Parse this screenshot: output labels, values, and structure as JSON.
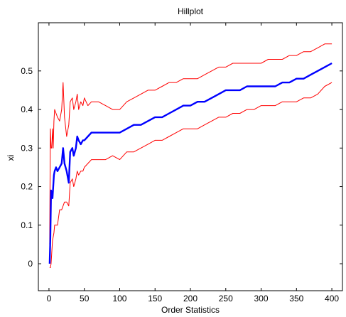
{
  "chart_data": {
    "type": "line",
    "title": "Hillplot",
    "xlabel": "Order Statistics",
    "ylabel": "xi",
    "xlim": [
      -15,
      415
    ],
    "ylim": [
      -0.07,
      0.625
    ],
    "xticks": [
      0,
      50,
      100,
      150,
      200,
      250,
      300,
      350,
      400
    ],
    "yticks": [
      0,
      0.1,
      0.2,
      0.3,
      0.4,
      0.5
    ],
    "ytick_labels": [
      "0",
      "0.1",
      "0.2",
      "0.3",
      "0.4",
      "0.5"
    ],
    "grid": false,
    "series": [
      {
        "color": "#ff0000",
        "x": [
          1,
          2,
          3,
          4,
          5,
          6,
          7,
          8,
          10,
          12,
          15,
          18,
          20,
          22,
          25,
          28,
          30,
          33,
          35,
          38,
          40,
          42,
          45,
          48,
          50,
          55,
          60,
          70,
          80,
          90,
          100,
          110,
          120,
          130,
          140,
          150,
          160,
          170,
          180,
          190,
          200,
          210,
          220,
          230,
          240,
          250,
          260,
          270,
          280,
          290,
          300,
          310,
          320,
          330,
          340,
          350,
          360,
          370,
          380,
          390,
          400
        ],
        "y": [
          0.05,
          0.35,
          0.3,
          0.3,
          0.35,
          0.3,
          0.37,
          0.4,
          0.39,
          0.38,
          0.37,
          0.4,
          0.47,
          0.38,
          0.33,
          0.36,
          0.42,
          0.43,
          0.4,
          0.42,
          0.44,
          0.4,
          0.42,
          0.41,
          0.43,
          0.41,
          0.42,
          0.42,
          0.41,
          0.4,
          0.4,
          0.42,
          0.43,
          0.44,
          0.45,
          0.45,
          0.46,
          0.47,
          0.47,
          0.48,
          0.48,
          0.48,
          0.49,
          0.5,
          0.51,
          0.51,
          0.52,
          0.52,
          0.52,
          0.52,
          0.52,
          0.53,
          0.53,
          0.53,
          0.54,
          0.54,
          0.55,
          0.55,
          0.56,
          0.57,
          0.57
        ]
      },
      {
        "color": "#0000ff",
        "x": [
          1,
          2,
          3,
          4,
          5,
          6,
          7,
          8,
          10,
          12,
          15,
          18,
          20,
          22,
          25,
          28,
          30,
          33,
          35,
          38,
          40,
          42,
          45,
          48,
          50,
          55,
          60,
          70,
          80,
          90,
          100,
          110,
          120,
          130,
          140,
          150,
          160,
          170,
          180,
          190,
          200,
          210,
          220,
          230,
          240,
          250,
          260,
          270,
          280,
          290,
          300,
          310,
          320,
          330,
          340,
          350,
          360,
          370,
          380,
          390,
          400
        ],
        "y": [
          0,
          0.07,
          0.19,
          0.18,
          0.17,
          0.2,
          0.23,
          0.24,
          0.25,
          0.24,
          0.25,
          0.26,
          0.3,
          0.26,
          0.24,
          0.21,
          0.29,
          0.3,
          0.28,
          0.3,
          0.33,
          0.32,
          0.31,
          0.32,
          0.32,
          0.33,
          0.34,
          0.34,
          0.34,
          0.34,
          0.34,
          0.35,
          0.36,
          0.36,
          0.37,
          0.38,
          0.38,
          0.39,
          0.4,
          0.41,
          0.41,
          0.42,
          0.42,
          0.43,
          0.44,
          0.45,
          0.45,
          0.45,
          0.46,
          0.46,
          0.46,
          0.46,
          0.46,
          0.47,
          0.47,
          0.48,
          0.48,
          0.49,
          0.5,
          0.51,
          0.52
        ]
      },
      {
        "color": "#ff0000",
        "x": [
          1,
          2,
          3,
          4,
          5,
          6,
          7,
          8,
          10,
          12,
          15,
          18,
          20,
          22,
          25,
          28,
          30,
          33,
          35,
          38,
          40,
          42,
          45,
          48,
          50,
          55,
          60,
          70,
          80,
          90,
          100,
          110,
          120,
          130,
          140,
          150,
          160,
          170,
          180,
          190,
          200,
          210,
          220,
          230,
          240,
          250,
          260,
          270,
          280,
          290,
          300,
          310,
          320,
          330,
          340,
          350,
          360,
          370,
          380,
          390,
          400
        ],
        "y": [
          -0.01,
          -0.01,
          0.0,
          0.03,
          0.06,
          0.07,
          0.08,
          0.1,
          0.1,
          0.1,
          0.14,
          0.14,
          0.15,
          0.16,
          0.16,
          0.15,
          0.21,
          0.22,
          0.2,
          0.22,
          0.24,
          0.23,
          0.24,
          0.24,
          0.25,
          0.26,
          0.27,
          0.27,
          0.27,
          0.28,
          0.27,
          0.29,
          0.29,
          0.3,
          0.31,
          0.32,
          0.32,
          0.33,
          0.34,
          0.35,
          0.35,
          0.35,
          0.36,
          0.37,
          0.38,
          0.38,
          0.39,
          0.39,
          0.4,
          0.4,
          0.41,
          0.41,
          0.41,
          0.42,
          0.42,
          0.42,
          0.43,
          0.43,
          0.44,
          0.46,
          0.47
        ]
      }
    ]
  }
}
